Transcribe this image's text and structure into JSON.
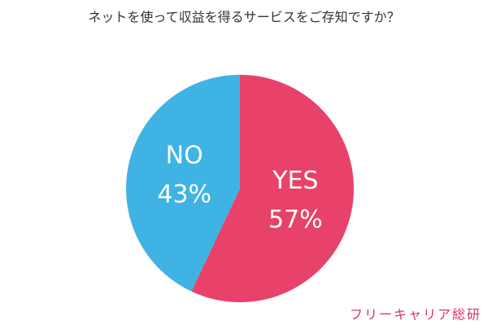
{
  "chart_data": {
    "type": "pie",
    "title": "ネットを使って収益を得るサービスをご存知ですか？",
    "categories": [
      "YES",
      "NO"
    ],
    "values": [
      57,
      43
    ],
    "value_labels": [
      "57%",
      "43%"
    ],
    "colors": [
      "#e8426a",
      "#3fb3e3"
    ],
    "source": "フリーキャリア総研"
  }
}
